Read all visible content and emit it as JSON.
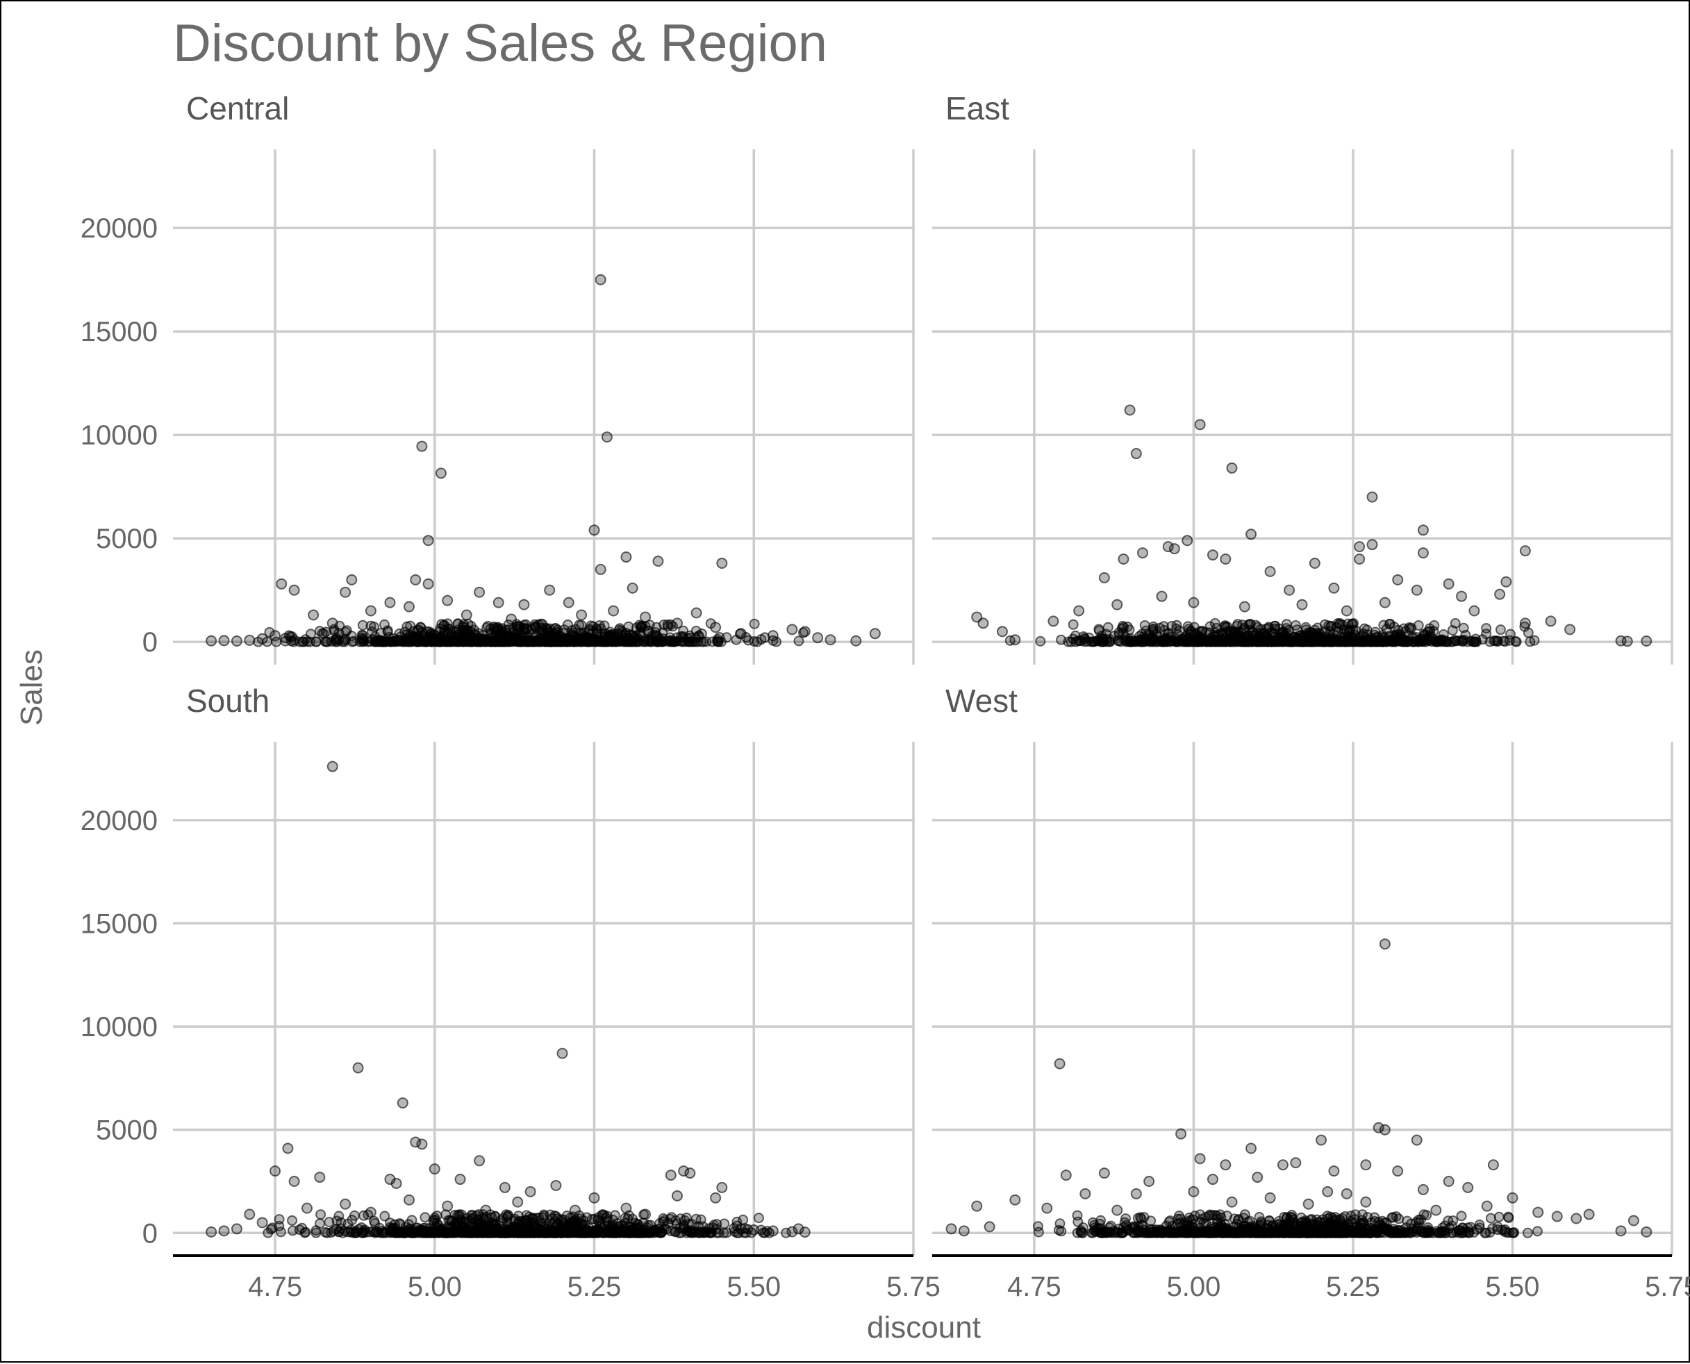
{
  "chart_data": {
    "type": "scatter",
    "title": "Discount by Sales & Region",
    "xlabel": "discount",
    "ylabel": "Sales",
    "xlim": [
      4.59,
      5.75
    ],
    "ylim": [
      -1100,
      23800
    ],
    "x_ticks": [
      4.75,
      5.0,
      5.25,
      5.5,
      5.75
    ],
    "x_tick_labels": [
      "4.75",
      "5.00",
      "5.25",
      "5.50",
      "5.75"
    ],
    "y_ticks": [
      0,
      5000,
      10000,
      15000,
      20000
    ],
    "y_tick_labels": [
      "0",
      "5000",
      "10000",
      "15000",
      "20000"
    ],
    "grid": true,
    "point_color": "#000000",
    "point_alpha": 0.3,
    "facets": [
      {
        "name": "Central",
        "points": [
          [
            5.26,
            17500
          ],
          [
            5.27,
            9900
          ],
          [
            4.98,
            9450
          ],
          [
            5.01,
            8150
          ],
          [
            4.99,
            4900
          ],
          [
            5.25,
            5400
          ],
          [
            5.26,
            3500
          ],
          [
            5.3,
            4100
          ],
          [
            5.35,
            3900
          ],
          [
            5.45,
            3800
          ],
          [
            4.76,
            2800
          ],
          [
            4.78,
            2500
          ],
          [
            4.87,
            3000
          ],
          [
            4.86,
            2400
          ],
          [
            4.97,
            3000
          ],
          [
            4.99,
            2800
          ],
          [
            5.07,
            2400
          ],
          [
            5.18,
            2500
          ],
          [
            5.21,
            1900
          ],
          [
            5.31,
            2600
          ],
          [
            5.41,
            1400
          ],
          [
            4.93,
            1900
          ],
          [
            5.02,
            2000
          ],
          [
            5.1,
            1900
          ],
          [
            5.14,
            1800
          ],
          [
            4.81,
            1300
          ],
          [
            4.84,
            900
          ],
          [
            4.9,
            1500
          ],
          [
            4.96,
            1700
          ],
          [
            5.05,
            1300
          ],
          [
            5.12,
            1100
          ],
          [
            5.23,
            1300
          ],
          [
            5.28,
            1500
          ],
          [
            5.33,
            1200
          ],
          [
            5.38,
            900
          ],
          [
            5.44,
            700
          ],
          [
            5.48,
            400
          ],
          [
            5.53,
            300
          ],
          [
            5.56,
            600
          ],
          [
            5.58,
            500
          ],
          [
            5.6,
            200
          ],
          [
            5.62,
            100
          ],
          [
            5.66,
            50
          ],
          [
            5.69,
            400
          ],
          [
            4.65,
            50
          ],
          [
            4.67,
            60
          ],
          [
            4.69,
            40
          ],
          [
            4.71,
            80
          ],
          [
            4.73,
            150
          ],
          [
            4.75,
            300
          ]
        ]
      },
      {
        "name": "East",
        "points": [
          [
            4.9,
            11200
          ],
          [
            5.01,
            10500
          ],
          [
            4.91,
            9100
          ],
          [
            5.06,
            8400
          ],
          [
            5.28,
            7000
          ],
          [
            5.36,
            5400
          ],
          [
            5.09,
            5200
          ],
          [
            4.99,
            4900
          ],
          [
            5.26,
            4600
          ],
          [
            5.28,
            4700
          ],
          [
            5.52,
            4400
          ],
          [
            4.96,
            4600
          ],
          [
            4.97,
            4500
          ],
          [
            4.92,
            4300
          ],
          [
            4.89,
            4000
          ],
          [
            5.03,
            4200
          ],
          [
            5.05,
            4000
          ],
          [
            5.19,
            3800
          ],
          [
            5.26,
            4000
          ],
          [
            5.36,
            4300
          ],
          [
            5.12,
            3400
          ],
          [
            4.86,
            3100
          ],
          [
            5.32,
            3000
          ],
          [
            5.35,
            2500
          ],
          [
            5.4,
            2800
          ],
          [
            5.49,
            2900
          ],
          [
            5.48,
            2300
          ],
          [
            5.42,
            2200
          ],
          [
            4.95,
            2200
          ],
          [
            5.15,
            2500
          ],
          [
            5.22,
            2600
          ],
          [
            4.78,
            1000
          ],
          [
            4.82,
            1500
          ],
          [
            4.88,
            1800
          ],
          [
            5.0,
            1900
          ],
          [
            5.08,
            1700
          ],
          [
            5.17,
            1800
          ],
          [
            5.24,
            1500
          ],
          [
            5.3,
            1900
          ],
          [
            5.44,
            1500
          ],
          [
            5.52,
            900
          ],
          [
            5.56,
            1000
          ],
          [
            5.59,
            600
          ],
          [
            4.66,
            1200
          ],
          [
            4.67,
            900
          ],
          [
            4.7,
            500
          ],
          [
            5.67,
            50
          ],
          [
            5.71,
            40
          ],
          [
            5.68,
            30
          ],
          [
            4.72,
            100
          ]
        ]
      },
      {
        "name": "South",
        "points": [
          [
            4.84,
            22600
          ],
          [
            5.2,
            8700
          ],
          [
            4.88,
            8000
          ],
          [
            4.95,
            6300
          ],
          [
            4.97,
            4400
          ],
          [
            4.98,
            4300
          ],
          [
            4.77,
            4100
          ],
          [
            5.07,
            3500
          ],
          [
            5.0,
            3100
          ],
          [
            4.75,
            3000
          ],
          [
            4.82,
            2700
          ],
          [
            4.78,
            2500
          ],
          [
            4.93,
            2600
          ],
          [
            4.94,
            2400
          ],
          [
            5.04,
            2600
          ],
          [
            5.11,
            2200
          ],
          [
            5.19,
            2300
          ],
          [
            5.15,
            2000
          ],
          [
            5.37,
            2800
          ],
          [
            5.39,
            3000
          ],
          [
            5.4,
            2900
          ],
          [
            5.38,
            1800
          ],
          [
            5.44,
            1700
          ],
          [
            5.45,
            2200
          ],
          [
            5.25,
            1700
          ],
          [
            5.3,
            1200
          ],
          [
            4.8,
            1200
          ],
          [
            4.86,
            1400
          ],
          [
            4.9,
            1000
          ],
          [
            4.96,
            1600
          ],
          [
            5.02,
            1300
          ],
          [
            5.08,
            1100
          ],
          [
            5.13,
            1500
          ],
          [
            5.22,
            1100
          ],
          [
            5.27,
            800
          ],
          [
            5.33,
            900
          ],
          [
            5.36,
            600
          ],
          [
            4.73,
            500
          ],
          [
            4.71,
            900
          ],
          [
            4.69,
            200
          ],
          [
            4.65,
            50
          ],
          [
            4.67,
            100
          ],
          [
            5.48,
            200
          ],
          [
            5.5,
            150
          ],
          [
            5.53,
            100
          ],
          [
            5.56,
            60
          ],
          [
            5.57,
            200
          ],
          [
            5.58,
            40
          ],
          [
            5.42,
            300
          ],
          [
            5.05,
            700
          ]
        ]
      },
      {
        "name": "West",
        "points": [
          [
            5.3,
            14000
          ],
          [
            4.79,
            8200
          ],
          [
            5.29,
            5100
          ],
          [
            5.3,
            5000
          ],
          [
            4.98,
            4800
          ],
          [
            5.35,
            4500
          ],
          [
            5.2,
            4500
          ],
          [
            5.09,
            4100
          ],
          [
            5.01,
            3600
          ],
          [
            5.47,
            3300
          ],
          [
            5.05,
            3300
          ],
          [
            5.16,
            3400
          ],
          [
            5.14,
            3300
          ],
          [
            5.27,
            3300
          ],
          [
            5.22,
            3000
          ],
          [
            5.32,
            3000
          ],
          [
            4.86,
            2900
          ],
          [
            4.8,
            2800
          ],
          [
            4.93,
            2500
          ],
          [
            5.03,
            2600
          ],
          [
            5.1,
            2700
          ],
          [
            5.4,
            2500
          ],
          [
            5.36,
            2100
          ],
          [
            5.43,
            2200
          ],
          [
            4.83,
            1900
          ],
          [
            4.91,
            1900
          ],
          [
            5.0,
            2000
          ],
          [
            5.21,
            2000
          ],
          [
            5.24,
            1900
          ],
          [
            5.5,
            1700
          ],
          [
            4.72,
            1600
          ],
          [
            4.66,
            1300
          ],
          [
            4.77,
            1200
          ],
          [
            4.88,
            1100
          ],
          [
            5.06,
            1500
          ],
          [
            5.12,
            1700
          ],
          [
            5.18,
            1400
          ],
          [
            5.27,
            1500
          ],
          [
            5.38,
            1100
          ],
          [
            5.46,
            1300
          ],
          [
            5.54,
            1000
          ],
          [
            5.57,
            800
          ],
          [
            5.6,
            700
          ],
          [
            5.62,
            900
          ],
          [
            5.69,
            600
          ],
          [
            5.67,
            100
          ],
          [
            5.71,
            50
          ],
          [
            4.62,
            200
          ],
          [
            4.64,
            100
          ],
          [
            4.68,
            300
          ]
        ]
      }
    ]
  }
}
